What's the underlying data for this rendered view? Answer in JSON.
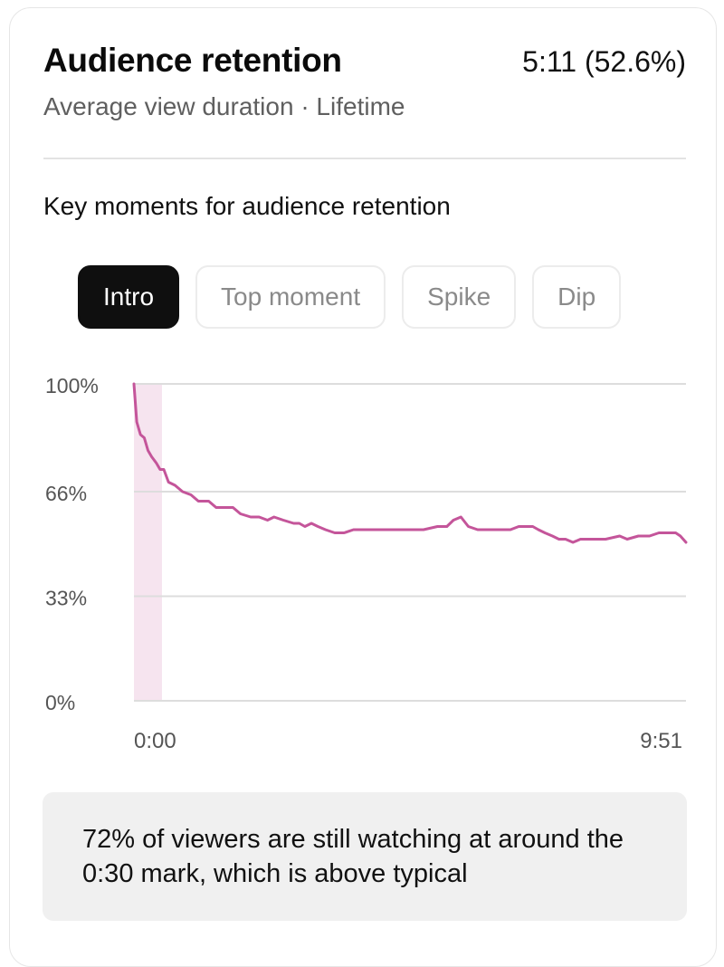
{
  "header": {
    "title": "Audience retention",
    "summary": "5:11 (52.6%)",
    "subtitle": "Average view duration · Lifetime"
  },
  "section": {
    "title": "Key moments for audience retention"
  },
  "tabs": [
    {
      "label": "Intro",
      "active": true
    },
    {
      "label": "Top moment",
      "active": false
    },
    {
      "label": "Spike",
      "active": false
    },
    {
      "label": "Dip",
      "active": false
    }
  ],
  "insight": {
    "text": "72% of viewers are still watching at around the 0:30 mark, which is above typical"
  },
  "colors": {
    "line": "#c4559a",
    "highlight": "#f6e4ef",
    "grid": "#dddddd",
    "active_tab": "#0f0f0f"
  },
  "chart_data": {
    "type": "line",
    "title": "",
    "xlabel": "",
    "ylabel": "",
    "x_tick_labels": [
      "0:00",
      "9:51"
    ],
    "y_tick_labels": [
      "100%",
      "66%",
      "33%",
      "0%"
    ],
    "y_ticks": [
      100,
      66,
      33,
      0
    ],
    "ylim": [
      0,
      100
    ],
    "xlim": [
      0,
      591
    ],
    "x_unit": "seconds",
    "highlight_range": [
      0,
      30
    ],
    "series": [
      {
        "values": [
          [
            0,
            100
          ],
          [
            3,
            88
          ],
          [
            7,
            84
          ],
          [
            11,
            83
          ],
          [
            15,
            79
          ],
          [
            19,
            77
          ],
          [
            24,
            75
          ],
          [
            28,
            73
          ],
          [
            32,
            73
          ],
          [
            37,
            69
          ],
          [
            44,
            68
          ],
          [
            52,
            66
          ],
          [
            61,
            65
          ],
          [
            69,
            63
          ],
          [
            80,
            63
          ],
          [
            88,
            61
          ],
          [
            96,
            61
          ],
          [
            106,
            61
          ],
          [
            114,
            59
          ],
          [
            125,
            58
          ],
          [
            134,
            58
          ],
          [
            143,
            57
          ],
          [
            150,
            58
          ],
          [
            160,
            57
          ],
          [
            171,
            56
          ],
          [
            177,
            56
          ],
          [
            183,
            55
          ],
          [
            190,
            56
          ],
          [
            197,
            55
          ],
          [
            205,
            54
          ],
          [
            215,
            53
          ],
          [
            225,
            53
          ],
          [
            235,
            54
          ],
          [
            245,
            54
          ],
          [
            255,
            54
          ],
          [
            268,
            54
          ],
          [
            280,
            54
          ],
          [
            290,
            54
          ],
          [
            300,
            54
          ],
          [
            310,
            54
          ],
          [
            325,
            55
          ],
          [
            335,
            55
          ],
          [
            342,
            57
          ],
          [
            350,
            58
          ],
          [
            358,
            55
          ],
          [
            368,
            54
          ],
          [
            380,
            54
          ],
          [
            392,
            54
          ],
          [
            403,
            54
          ],
          [
            412,
            55
          ],
          [
            420,
            55
          ],
          [
            427,
            55
          ],
          [
            433,
            54
          ],
          [
            440,
            53
          ],
          [
            448,
            52
          ],
          [
            455,
            51
          ],
          [
            462,
            51
          ],
          [
            470,
            50
          ],
          [
            478,
            51
          ],
          [
            488,
            51
          ],
          [
            495,
            51
          ],
          [
            505,
            51
          ],
          [
            520,
            52
          ],
          [
            528,
            51
          ],
          [
            540,
            52
          ],
          [
            552,
            52
          ],
          [
            562,
            53
          ],
          [
            570,
            53
          ],
          [
            580,
            53
          ],
          [
            585,
            52
          ],
          [
            591,
            50
          ]
        ]
      }
    ]
  }
}
